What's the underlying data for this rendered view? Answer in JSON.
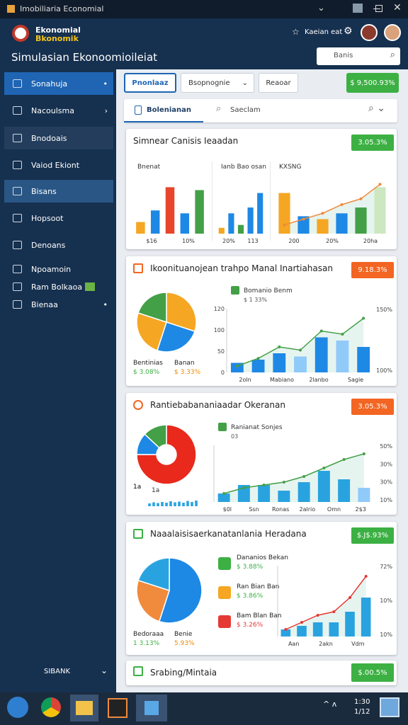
{
  "window": {
    "title": "Imobiliaria Economial"
  },
  "header": {
    "brand": [
      "Ekonomial",
      "Bkonomik"
    ],
    "title": "Simulasian Ekonoomioileiat",
    "user": "Kaeian eat",
    "search": "Banis"
  },
  "sidebar": {
    "items": [
      "Sonahuja",
      "Nacoulsma",
      "Bnodoais",
      "Vaiod Ekiont",
      "Bisans",
      "Hopsoot",
      "Denoans",
      "Npoamoin",
      "Ram Bolkaoa",
      "Bienaa"
    ],
    "footer": "SIBANK"
  },
  "toolbar": {
    "tabs": [
      "Pnonlaaz",
      "Bsopnognie",
      "Reaoar"
    ],
    "badge": "$ 9,500.93%"
  },
  "searchbar": {
    "tab": "Bolenianan",
    "search": "Saeclam"
  },
  "cards": [
    {
      "title": "Simnear Canisis Ieaadan",
      "badge": "3.05.3%",
      "badge_color": "#3cb043",
      "panels": [
        {
          "label": "Bnenat",
          "values": [
            20,
            40,
            80,
            35,
            75
          ],
          "colors": [
            "#f5a623",
            "#1e88e5",
            "#e8452c",
            "#1e88e5",
            "#43a047"
          ],
          "ylim": [
            0,
            100
          ],
          "x_labels": [
            "$16",
            "10%"
          ]
        },
        {
          "label": "Ianb Bao osan",
          "values": [
            10,
            35,
            15,
            45,
            70
          ],
          "colors": [
            "#f5a623",
            "#1e88e5",
            "#43a047",
            "#1e88e5",
            "#1e88e5"
          ],
          "ylim": [
            0,
            100
          ],
          "x_labels": [
            "20%",
            "113"
          ]
        },
        {
          "label": "KXSNG",
          "values": [
            70,
            30,
            25,
            35,
            45,
            80
          ],
          "colors": [
            "#f5a623",
            "#1e88e5",
            "#f5a623",
            "#1e88e5",
            "#43a047",
            "#cde8c0"
          ],
          "line": [
            15,
            25,
            35,
            50,
            60,
            85
          ],
          "line_color": "#f08a3c",
          "ylim": [
            0,
            100
          ],
          "x_labels": [
            "200",
            "20%",
            "20ha"
          ]
        }
      ]
    },
    {
      "title": "Ikoonituanojean trahpo Manal Inartiahasan",
      "badge": "9.18.3%",
      "badge_color": "#f26522",
      "pie": {
        "values": [
          30,
          25,
          25,
          20
        ],
        "colors": [
          "#f5a623",
          "#1e88e5",
          "#f5a623",
          "#43a047"
        ],
        "legend": [
          "Bentinias",
          "Banan"
        ],
        "legend_values": [
          "$ 3.08%",
          "$ 3.33%"
        ]
      },
      "chart": {
        "legend": {
          "name": "Bomanio Benm",
          "value": "$ 1 33%"
        },
        "values": [
          15,
          20,
          30,
          25,
          55,
          50,
          40
        ],
        "colors": [
          "#1e88e5",
          "#1e88e5",
          "#1e88e5",
          "#90caf9",
          "#1e88e5",
          "#90caf9",
          "#1e88e5"
        ],
        "line": [
          10,
          22,
          40,
          35,
          65,
          60,
          85
        ],
        "line_color": "#43a047",
        "ylim": [
          0,
          100
        ],
        "y_labels": [
          "150%",
          "100%"
        ],
        "y_labels_left": [
          "120",
          "100",
          "50",
          "0"
        ],
        "x_labels": [
          "2oln",
          "Mabiano",
          "2lanbo",
          "Sagie"
        ]
      }
    },
    {
      "title": "Rantiebabananiaadar Okeranan",
      "badge": "3.05.3%",
      "badge_color": "#f26522",
      "pie": {
        "values": [
          75,
          12,
          13
        ],
        "colors": [
          "#e8291c",
          "#1e88e5",
          "#43a047"
        ],
        "donut": true
      },
      "spark": {
        "label": "1a",
        "values": [
          40,
          55,
          45,
          60,
          50,
          70,
          55,
          65,
          50,
          75,
          60,
          80
        ],
        "color": "#29a3e0",
        "ylim": [
          0,
          100
        ]
      },
      "chart": {
        "legend": {
          "name": "Ranianat Sonjes",
          "value": "03"
        },
        "values": [
          15,
          30,
          30,
          20,
          35,
          55,
          40,
          25
        ],
        "colors": [
          "#29a3e0",
          "#29a3e0",
          "#29a3e0",
          "#29a3e0",
          "#29a3e0",
          "#29a3e0",
          "#29a3e0",
          "#90caf9"
        ],
        "line": [
          15,
          25,
          30,
          35,
          45,
          60,
          75,
          85
        ],
        "line_color": "#43a047",
        "ylim": [
          0,
          100
        ],
        "y_labels": [
          "50%",
          "30%",
          "30%",
          "10%"
        ],
        "x_labels": [
          "$0l",
          "Ssn",
          "Ronas",
          "2alrio",
          "Omn",
          "2$3"
        ]
      }
    },
    {
      "title": "Naaalaisisaerkanatanlania Heradana",
      "badge": "$.J$.93%",
      "badge_color": "#3cb043",
      "pie": {
        "values": [
          55,
          25,
          20
        ],
        "colors": [
          "#1e88e5",
          "#f08a3c",
          "#29a3e0"
        ],
        "legend": [
          "Bedoraaa",
          "Benie"
        ],
        "legend_values": [
          "1 3.13%",
          "5.93%"
        ]
      },
      "list": [
        {
          "name": "Dananios Bekan",
          "value": "$ 3.88%"
        },
        {
          "name": "Ran Bian Ban",
          "value": "$ 3.86%"
        },
        {
          "name": "Bam Blan Ban",
          "value": "$ 3.26%"
        }
      ],
      "chart": {
        "values": [
          10,
          15,
          20,
          20,
          35,
          55
        ],
        "colors": [
          "#29a3e0",
          "#29a3e0",
          "#29a3e0",
          "#29a3e0",
          "#29a3e0",
          "#29a3e0"
        ],
        "line": [
          10,
          20,
          30,
          35,
          55,
          85
        ],
        "line_color": "#e53935",
        "ylim": [
          0,
          100
        ],
        "y_labels": [
          "72%",
          "10%",
          "10%"
        ],
        "x_labels": [
          "Aan",
          "2akn",
          "Vdm"
        ]
      }
    },
    {
      "title": "Srabing/Mintaia",
      "badge": "$.00.5%",
      "badge_color": "#3cb043"
    }
  ],
  "taskbar": {
    "time": "1:30",
    "date": "1/12"
  }
}
